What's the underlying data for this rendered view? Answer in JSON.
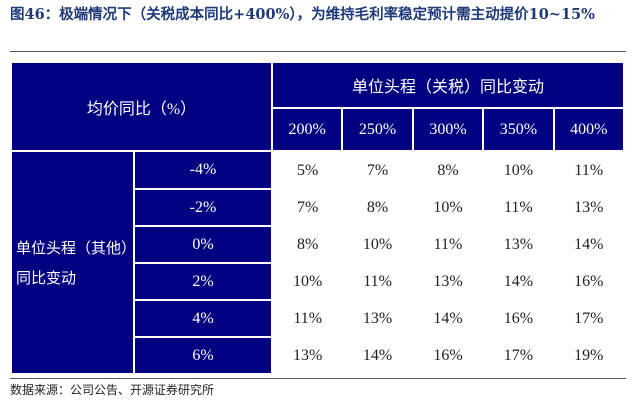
{
  "title": "图46：极端情况下（关税成本同比+400%），为维持毛利率稳定预计需主动提价10~15%",
  "table": {
    "corner": "均价同比（%）",
    "col_group": "单位头程（关税）同比变动",
    "row_group": "单位头程（其他）同比变动",
    "columns": [
      "200%",
      "250%",
      "300%",
      "350%",
      "400%"
    ],
    "rows": [
      {
        "label": "-4%",
        "values": [
          "5%",
          "7%",
          "8%",
          "10%",
          "11%"
        ]
      },
      {
        "label": "-2%",
        "values": [
          "7%",
          "8%",
          "10%",
          "11%",
          "13%"
        ]
      },
      {
        "label": "0%",
        "values": [
          "8%",
          "10%",
          "11%",
          "13%",
          "14%"
        ]
      },
      {
        "label": "2%",
        "values": [
          "10%",
          "11%",
          "13%",
          "14%",
          "16%"
        ]
      },
      {
        "label": "4%",
        "values": [
          "11%",
          "13%",
          "14%",
          "16%",
          "17%"
        ]
      },
      {
        "label": "6%",
        "values": [
          "13%",
          "14%",
          "16%",
          "17%",
          "19%"
        ]
      }
    ],
    "header_color": "#000080"
  },
  "source": "数据来源：公司公告、开源证券研究所"
}
